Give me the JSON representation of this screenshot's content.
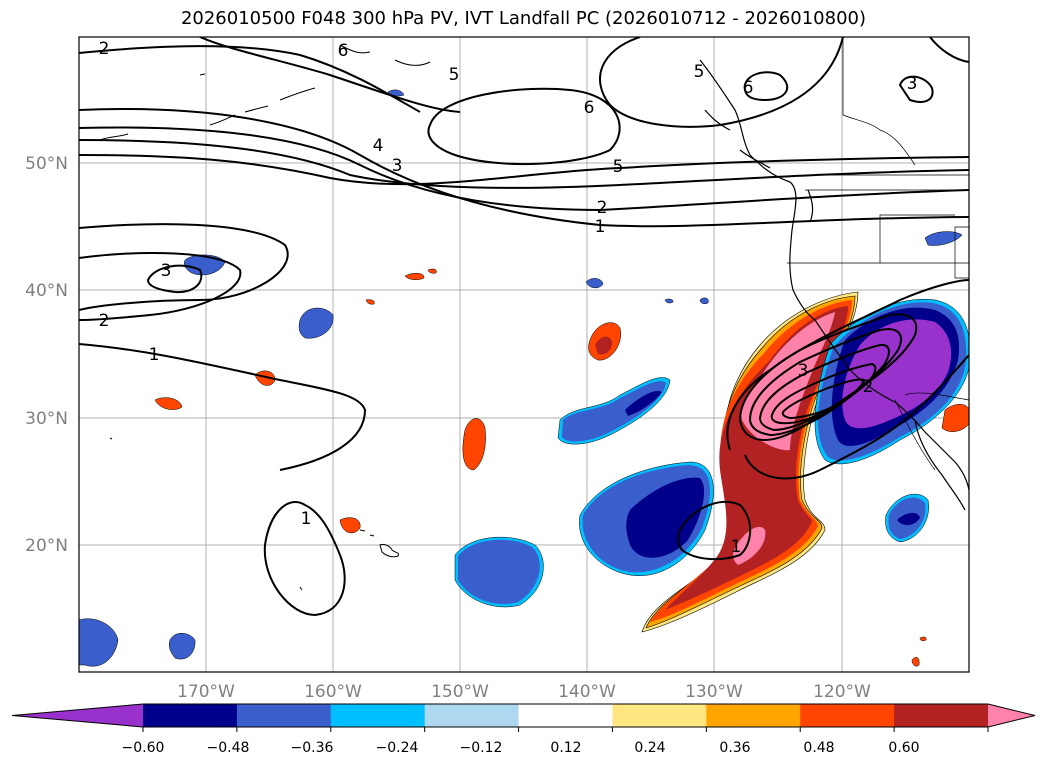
{
  "title": "2026010500 F048 300 hPa PV, IVT Landfall PC (2026010712 - 2026010800)",
  "lat_labels": [
    "50°N",
    "40°N",
    "30°N",
    "20°N"
  ],
  "lon_labels": [
    "170°W",
    "160°W",
    "150°W",
    "140°W",
    "130°W",
    "120°W"
  ],
  "colorbar": {
    "tick_labels": [
      "−0.60",
      "−0.48",
      "−0.36",
      "−0.24",
      "−0.12",
      "0.12",
      "0.24",
      "0.36",
      "0.48",
      "0.60"
    ],
    "colors": [
      "#9932cc",
      "#00008b",
      "#3a5fcd",
      "#00bfff",
      "#add8f0",
      "#ffffff",
      "#ffe680",
      "#ffa500",
      "#ff4500",
      "#b22222",
      "#ff82ab"
    ]
  },
  "contour_labels": [
    "2",
    "6",
    "5",
    "6",
    "5",
    "6",
    "3",
    "4",
    "3",
    "5",
    "2",
    "1",
    "3",
    "2",
    "1",
    "1",
    "3",
    "2",
    "1"
  ]
}
